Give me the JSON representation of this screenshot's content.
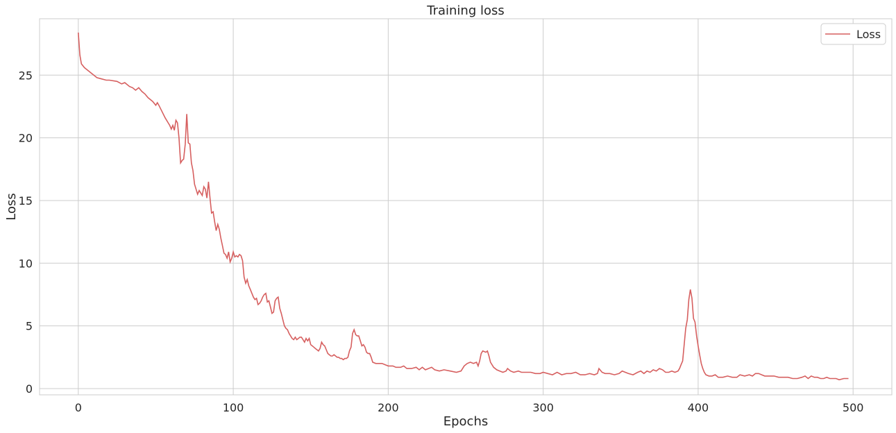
{
  "chart_data": {
    "type": "line",
    "title": "Training loss",
    "xlabel": "Epochs",
    "ylabel": "Loss",
    "xlim": [
      -25,
      525
    ],
    "ylim": [
      -0.5,
      29.5
    ],
    "xticks": [
      0,
      100,
      200,
      300,
      400,
      500
    ],
    "yticks": [
      0,
      5,
      10,
      15,
      20,
      25
    ],
    "grid": true,
    "legend_position": "top-right",
    "colors": {
      "line": "#d65f5f",
      "grid": "#cccccc",
      "frame": "#cccccc"
    },
    "series": [
      {
        "name": "Loss",
        "points": [
          [
            0,
            28.4
          ],
          [
            1,
            26.6
          ],
          [
            2,
            25.9
          ],
          [
            4,
            25.6
          ],
          [
            6,
            25.4
          ],
          [
            8,
            25.2
          ],
          [
            10,
            25.0
          ],
          [
            12,
            24.8
          ],
          [
            15,
            24.7
          ],
          [
            18,
            24.6
          ],
          [
            20,
            24.6
          ],
          [
            25,
            24.5
          ],
          [
            28,
            24.3
          ],
          [
            30,
            24.4
          ],
          [
            33,
            24.1
          ],
          [
            35,
            24.0
          ],
          [
            37,
            23.8
          ],
          [
            39,
            24.0
          ],
          [
            41,
            23.7
          ],
          [
            43,
            23.5
          ],
          [
            45,
            23.2
          ],
          [
            48,
            22.9
          ],
          [
            50,
            22.6
          ],
          [
            51,
            22.8
          ],
          [
            52,
            22.6
          ],
          [
            54,
            22.1
          ],
          [
            56,
            21.6
          ],
          [
            58,
            21.2
          ],
          [
            59,
            21.0
          ],
          [
            60,
            20.7
          ],
          [
            61,
            21.0
          ],
          [
            62,
            20.6
          ],
          [
            63,
            21.4
          ],
          [
            64,
            21.2
          ],
          [
            65,
            20.0
          ],
          [
            66,
            18.0
          ],
          [
            67,
            18.2
          ],
          [
            68,
            18.3
          ],
          [
            69,
            19.5
          ],
          [
            70,
            21.9
          ],
          [
            71,
            19.6
          ],
          [
            72,
            19.5
          ],
          [
            73,
            18.0
          ],
          [
            74,
            17.4
          ],
          [
            75,
            16.3
          ],
          [
            76,
            15.9
          ],
          [
            77,
            15.5
          ],
          [
            78,
            15.8
          ],
          [
            79,
            15.6
          ],
          [
            80,
            15.4
          ],
          [
            81,
            16.1
          ],
          [
            82,
            15.9
          ],
          [
            83,
            15.2
          ],
          [
            84,
            16.5
          ],
          [
            85,
            15.2
          ],
          [
            86,
            14.0
          ],
          [
            87,
            14.1
          ],
          [
            88,
            13.3
          ],
          [
            89,
            12.6
          ],
          [
            90,
            13.1
          ],
          [
            91,
            12.7
          ],
          [
            92,
            12.0
          ],
          [
            93,
            11.4
          ],
          [
            94,
            10.8
          ],
          [
            95,
            10.7
          ],
          [
            96,
            10.4
          ],
          [
            97,
            10.9
          ],
          [
            98,
            10.1
          ],
          [
            99,
            10.4
          ],
          [
            100,
            10.9
          ],
          [
            101,
            10.5
          ],
          [
            102,
            10.6
          ],
          [
            103,
            10.5
          ],
          [
            104,
            10.7
          ],
          [
            105,
            10.6
          ],
          [
            106,
            10.2
          ],
          [
            107,
            8.9
          ],
          [
            108,
            8.4
          ],
          [
            109,
            8.7
          ],
          [
            110,
            8.2
          ],
          [
            111,
            7.9
          ],
          [
            112,
            7.6
          ],
          [
            113,
            7.3
          ],
          [
            114,
            7.1
          ],
          [
            115,
            7.2
          ],
          [
            116,
            6.7
          ],
          [
            117,
            6.8
          ],
          [
            118,
            7.0
          ],
          [
            119,
            7.3
          ],
          [
            120,
            7.5
          ],
          [
            121,
            7.6
          ],
          [
            122,
            6.9
          ],
          [
            123,
            7.0
          ],
          [
            124,
            6.5
          ],
          [
            125,
            6.0
          ],
          [
            126,
            6.1
          ],
          [
            127,
            7.0
          ],
          [
            128,
            7.2
          ],
          [
            129,
            7.3
          ],
          [
            130,
            6.4
          ],
          [
            131,
            6.0
          ],
          [
            132,
            5.5
          ],
          [
            133,
            5.0
          ],
          [
            134,
            4.8
          ],
          [
            135,
            4.7
          ],
          [
            136,
            4.4
          ],
          [
            137,
            4.2
          ],
          [
            138,
            4.0
          ],
          [
            139,
            3.9
          ],
          [
            140,
            4.1
          ],
          [
            141,
            3.9
          ],
          [
            142,
            4.0
          ],
          [
            143,
            4.1
          ],
          [
            144,
            4.1
          ],
          [
            145,
            3.9
          ],
          [
            146,
            3.7
          ],
          [
            147,
            4.0
          ],
          [
            148,
            3.8
          ],
          [
            149,
            4.0
          ],
          [
            150,
            3.5
          ],
          [
            151,
            3.4
          ],
          [
            152,
            3.3
          ],
          [
            153,
            3.2
          ],
          [
            154,
            3.1
          ],
          [
            155,
            3.0
          ],
          [
            156,
            3.2
          ],
          [
            157,
            3.7
          ],
          [
            158,
            3.5
          ],
          [
            159,
            3.4
          ],
          [
            160,
            3.1
          ],
          [
            161,
            2.8
          ],
          [
            162,
            2.7
          ],
          [
            163,
            2.6
          ],
          [
            164,
            2.6
          ],
          [
            165,
            2.7
          ],
          [
            166,
            2.6
          ],
          [
            167,
            2.5
          ],
          [
            168,
            2.5
          ],
          [
            169,
            2.4
          ],
          [
            170,
            2.4
          ],
          [
            171,
            2.3
          ],
          [
            172,
            2.4
          ],
          [
            173,
            2.4
          ],
          [
            174,
            2.5
          ],
          [
            175,
            3.0
          ],
          [
            176,
            3.3
          ],
          [
            177,
            4.4
          ],
          [
            178,
            4.7
          ],
          [
            179,
            4.3
          ],
          [
            180,
            4.2
          ],
          [
            181,
            4.2
          ],
          [
            182,
            3.8
          ],
          [
            183,
            3.4
          ],
          [
            184,
            3.5
          ],
          [
            185,
            3.3
          ],
          [
            186,
            2.9
          ],
          [
            187,
            2.8
          ],
          [
            188,
            2.8
          ],
          [
            189,
            2.5
          ],
          [
            190,
            2.1
          ],
          [
            192,
            2.0
          ],
          [
            194,
            2.0
          ],
          [
            196,
            2.0
          ],
          [
            198,
            1.9
          ],
          [
            200,
            1.8
          ],
          [
            203,
            1.8
          ],
          [
            205,
            1.7
          ],
          [
            208,
            1.7
          ],
          [
            210,
            1.8
          ],
          [
            212,
            1.6
          ],
          [
            215,
            1.6
          ],
          [
            218,
            1.7
          ],
          [
            220,
            1.5
          ],
          [
            222,
            1.7
          ],
          [
            224,
            1.5
          ],
          [
            226,
            1.6
          ],
          [
            228,
            1.7
          ],
          [
            230,
            1.5
          ],
          [
            233,
            1.4
          ],
          [
            236,
            1.5
          ],
          [
            240,
            1.4
          ],
          [
            244,
            1.3
          ],
          [
            247,
            1.4
          ],
          [
            249,
            1.8
          ],
          [
            251,
            2.0
          ],
          [
            253,
            2.1
          ],
          [
            255,
            2.0
          ],
          [
            257,
            2.1
          ],
          [
            258,
            1.8
          ],
          [
            259,
            2.2
          ],
          [
            260,
            2.8
          ],
          [
            261,
            3.0
          ],
          [
            263,
            2.9
          ],
          [
            264,
            3.0
          ],
          [
            265,
            2.6
          ],
          [
            266,
            2.1
          ],
          [
            268,
            1.7
          ],
          [
            270,
            1.5
          ],
          [
            272,
            1.4
          ],
          [
            274,
            1.3
          ],
          [
            276,
            1.4
          ],
          [
            277,
            1.6
          ],
          [
            279,
            1.4
          ],
          [
            281,
            1.3
          ],
          [
            284,
            1.4
          ],
          [
            286,
            1.3
          ],
          [
            289,
            1.3
          ],
          [
            292,
            1.3
          ],
          [
            295,
            1.2
          ],
          [
            298,
            1.2
          ],
          [
            300,
            1.3
          ],
          [
            303,
            1.2
          ],
          [
            306,
            1.1
          ],
          [
            309,
            1.3
          ],
          [
            312,
            1.1
          ],
          [
            315,
            1.2
          ],
          [
            318,
            1.2
          ],
          [
            321,
            1.3
          ],
          [
            324,
            1.1
          ],
          [
            327,
            1.1
          ],
          [
            330,
            1.2
          ],
          [
            333,
            1.1
          ],
          [
            335,
            1.2
          ],
          [
            336,
            1.6
          ],
          [
            338,
            1.3
          ],
          [
            340,
            1.2
          ],
          [
            343,
            1.2
          ],
          [
            346,
            1.1
          ],
          [
            349,
            1.2
          ],
          [
            351,
            1.4
          ],
          [
            353,
            1.3
          ],
          [
            355,
            1.2
          ],
          [
            358,
            1.1
          ],
          [
            361,
            1.3
          ],
          [
            363,
            1.4
          ],
          [
            365,
            1.2
          ],
          [
            367,
            1.4
          ],
          [
            369,
            1.3
          ],
          [
            371,
            1.5
          ],
          [
            373,
            1.4
          ],
          [
            375,
            1.6
          ],
          [
            377,
            1.5
          ],
          [
            379,
            1.3
          ],
          [
            381,
            1.3
          ],
          [
            383,
            1.4
          ],
          [
            385,
            1.3
          ],
          [
            387,
            1.4
          ],
          [
            388,
            1.6
          ],
          [
            389,
            1.9
          ],
          [
            390,
            2.2
          ],
          [
            391,
            3.5
          ],
          [
            392,
            4.8
          ],
          [
            393,
            5.5
          ],
          [
            394,
            7.1
          ],
          [
            395,
            7.9
          ],
          [
            396,
            7.2
          ],
          [
            397,
            5.6
          ],
          [
            398,
            5.3
          ],
          [
            399,
            4.2
          ],
          [
            400,
            3.4
          ],
          [
            401,
            2.7
          ],
          [
            402,
            2.0
          ],
          [
            403,
            1.6
          ],
          [
            404,
            1.3
          ],
          [
            405,
            1.1
          ],
          [
            407,
            1.0
          ],
          [
            409,
            1.0
          ],
          [
            411,
            1.1
          ],
          [
            413,
            0.9
          ],
          [
            416,
            0.9
          ],
          [
            419,
            1.0
          ],
          [
            422,
            0.9
          ],
          [
            425,
            0.9
          ],
          [
            427,
            1.1
          ],
          [
            430,
            1.0
          ],
          [
            433,
            1.1
          ],
          [
            435,
            1.0
          ],
          [
            437,
            1.2
          ],
          [
            439,
            1.2
          ],
          [
            441,
            1.1
          ],
          [
            443,
            1.0
          ],
          [
            446,
            1.0
          ],
          [
            449,
            1.0
          ],
          [
            452,
            0.9
          ],
          [
            455,
            0.9
          ],
          [
            458,
            0.9
          ],
          [
            461,
            0.8
          ],
          [
            464,
            0.8
          ],
          [
            467,
            0.9
          ],
          [
            469,
            1.0
          ],
          [
            471,
            0.8
          ],
          [
            473,
            1.0
          ],
          [
            475,
            0.9
          ],
          [
            477,
            0.9
          ],
          [
            479,
            0.8
          ],
          [
            481,
            0.8
          ],
          [
            483,
            0.9
          ],
          [
            485,
            0.8
          ],
          [
            487,
            0.8
          ],
          [
            489,
            0.8
          ],
          [
            491,
            0.7
          ],
          [
            494,
            0.8
          ],
          [
            497,
            0.8
          ]
        ]
      }
    ]
  }
}
